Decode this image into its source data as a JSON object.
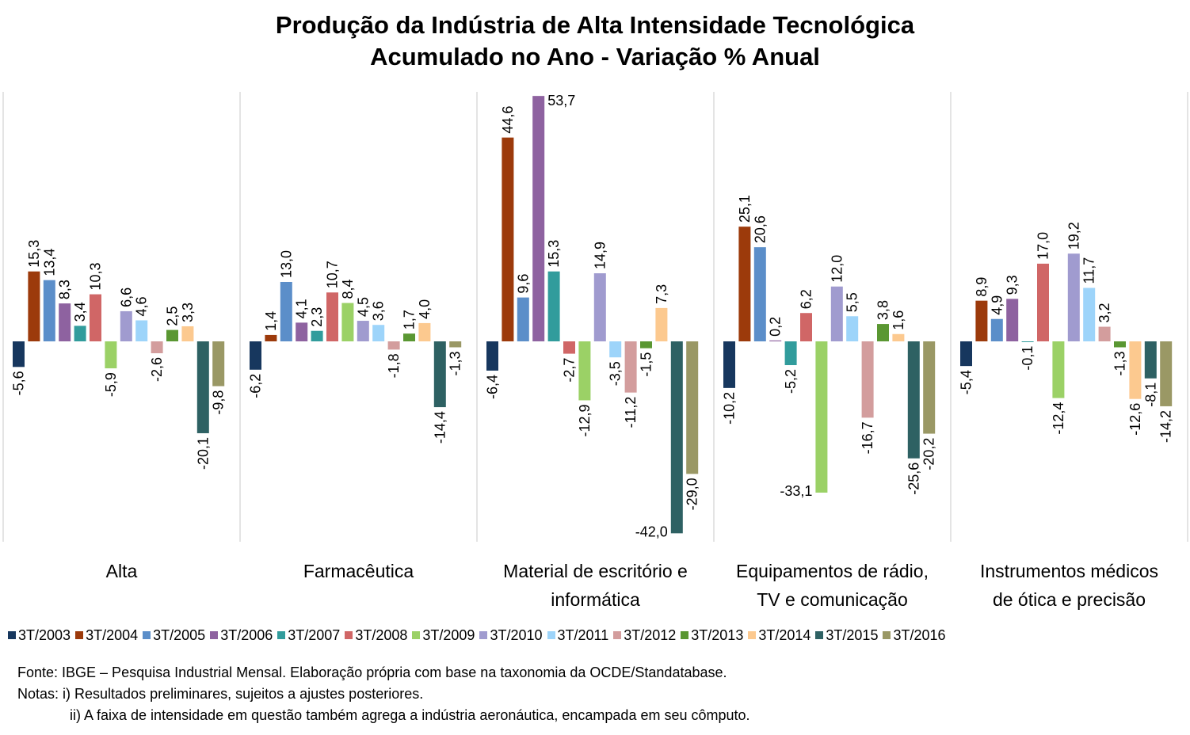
{
  "chart_data": {
    "type": "bar",
    "title_line1": "Produção da Indústria de Alta Intensidade Tecnológica",
    "title_line2": "Acumulado no Ano - Variação % Anual",
    "categories": [
      {
        "lines": [
          "Alta"
        ]
      },
      {
        "lines": [
          "Farmacêutica"
        ]
      },
      {
        "lines": [
          "Material de escritório e",
          "informática"
        ]
      },
      {
        "lines": [
          "Equipamentos de rádio,",
          "TV e comunicação"
        ]
      },
      {
        "lines": [
          "Instrumentos médicos",
          "de ótica e precisão"
        ]
      }
    ],
    "series": [
      {
        "name": "3T/2003",
        "color": "#17375E",
        "values": [
          -5.6,
          -6.2,
          -6.4,
          -10.2,
          -5.4
        ],
        "labels": [
          "-5,6",
          "-6,2",
          "-6,4",
          "-10,2",
          "-5,4"
        ]
      },
      {
        "name": "3T/2004",
        "color": "#9C3A0B",
        "values": [
          15.3,
          1.4,
          44.6,
          25.1,
          8.9
        ],
        "labels": [
          "15,3",
          "1,4",
          "44,6",
          "25,1",
          "8,9"
        ]
      },
      {
        "name": "3T/2005",
        "color": "#5B8EC9",
        "values": [
          13.4,
          13.0,
          9.6,
          20.6,
          4.9
        ],
        "labels": [
          "13,4",
          "13,0",
          "9,6",
          "20,6",
          "4,9"
        ]
      },
      {
        "name": "3T/2006",
        "color": "#8E62A0",
        "values": [
          8.3,
          4.1,
          53.7,
          0.2,
          9.3
        ],
        "labels": [
          "8,3",
          "4,1",
          "53,7",
          "0,2",
          "9,3"
        ]
      },
      {
        "name": "3T/2007",
        "color": "#319C9C",
        "values": [
          3.4,
          2.3,
          15.3,
          -5.2,
          -0.1
        ],
        "labels": [
          "3,4",
          "2,3",
          "15,3",
          "-5,2",
          "-0,1"
        ]
      },
      {
        "name": "3T/2008",
        "color": "#D06666",
        "values": [
          10.3,
          10.7,
          -2.7,
          6.2,
          17.0
        ],
        "labels": [
          "10,3",
          "10,7",
          "-2,7",
          "6,2",
          "17,0"
        ]
      },
      {
        "name": "3T/2009",
        "color": "#9BD166",
        "values": [
          -5.9,
          8.4,
          -12.9,
          -33.1,
          -12.4
        ],
        "labels": [
          "-5,9",
          "8,4",
          "-12,9",
          "-33,1",
          "-12,4"
        ]
      },
      {
        "name": "3T/2010",
        "color": "#A09BCF",
        "values": [
          6.6,
          4.5,
          14.9,
          12.0,
          19.2
        ],
        "labels": [
          "6,6",
          "4,5",
          "14,9",
          "12,0",
          "19,2"
        ]
      },
      {
        "name": "3T/2011",
        "color": "#9DD4FA",
        "values": [
          4.6,
          3.6,
          -3.5,
          5.5,
          11.7
        ],
        "labels": [
          "4,6",
          "3,6",
          "-3,5",
          "5,5",
          "11,7"
        ]
      },
      {
        "name": "3T/2012",
        "color": "#D39D9D",
        "values": [
          -2.6,
          -1.8,
          -11.2,
          -16.7,
          3.2
        ],
        "labels": [
          "-2,6",
          "-1,8",
          "-11,2",
          "-16,7",
          "3,2"
        ]
      },
      {
        "name": "3T/2013",
        "color": "#5A9732",
        "values": [
          2.5,
          1.7,
          -1.5,
          3.8,
          -1.3
        ],
        "labels": [
          "2,5",
          "1,7",
          "-1,5",
          "3,8",
          "-1,3"
        ]
      },
      {
        "name": "3T/2014",
        "color": "#FCC98F",
        "values": [
          3.3,
          4.0,
          7.3,
          1.6,
          -12.6
        ],
        "labels": [
          "3,3",
          "4,0",
          "7,3",
          "1,6",
          "-12,6"
        ]
      },
      {
        "name": "3T/2015",
        "color": "#2E6163",
        "values": [
          -20.1,
          -14.4,
          -42.0,
          -25.6,
          -8.1
        ],
        "labels": [
          "-20,1",
          "-14,4",
          "-42,0",
          "-25,6",
          "-8,1"
        ]
      },
      {
        "name": "3T/2016",
        "color": "#9A9865",
        "values": [
          -9.8,
          -1.3,
          -29.0,
          -20.2,
          -14.2
        ],
        "labels": [
          "-9,8",
          "-1,3",
          "-29,0",
          "-20,2",
          "-14,2"
        ]
      }
    ],
    "ylim": [
      -44.5,
      55
    ],
    "gridlines": false,
    "legend_position": "bottom"
  },
  "notes": {
    "source": "Fonte: IBGE – Pesquisa Industrial Mensal. Elaboração própria com base na taxonomia da OCDE/Standatabase.",
    "note1": "Notas: i) Resultados preliminares, sujeitos a ajustes posteriores.",
    "note2": "ii) A faixa de intensidade em questão também agrega a indústria aeronáutica, encampada em seu cômputo."
  }
}
